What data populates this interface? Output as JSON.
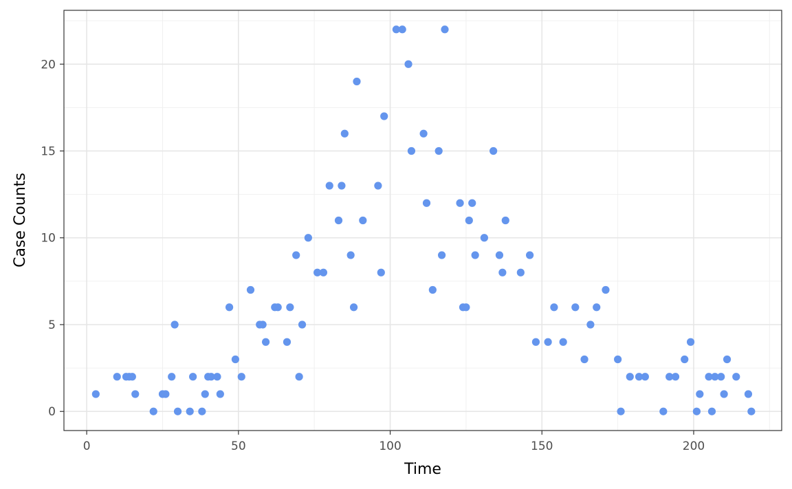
{
  "chart_data": {
    "type": "scatter",
    "xlabel": "Time",
    "ylabel": "Case Counts",
    "xlim": [
      -7.5,
      229
    ],
    "ylim": [
      -1.1,
      23.1
    ],
    "xticks": [
      0,
      50,
      100,
      150,
      200
    ],
    "yticks": [
      0,
      5,
      10,
      15,
      20
    ],
    "grid": true,
    "point_color": "#6495ED",
    "points": [
      [
        3,
        1
      ],
      [
        10,
        2
      ],
      [
        13,
        2
      ],
      [
        14,
        2
      ],
      [
        15,
        2
      ],
      [
        16,
        1
      ],
      [
        22,
        0
      ],
      [
        25,
        1
      ],
      [
        26,
        1
      ],
      [
        28,
        2
      ],
      [
        29,
        5
      ],
      [
        30,
        0
      ],
      [
        34,
        0
      ],
      [
        35,
        2
      ],
      [
        38,
        0
      ],
      [
        39,
        1
      ],
      [
        40,
        2
      ],
      [
        41,
        2
      ],
      [
        43,
        2
      ],
      [
        44,
        1
      ],
      [
        47,
        6
      ],
      [
        49,
        3
      ],
      [
        51,
        2
      ],
      [
        54,
        7
      ],
      [
        57,
        5
      ],
      [
        58,
        5
      ],
      [
        59,
        4
      ],
      [
        62,
        6
      ],
      [
        63,
        6
      ],
      [
        66,
        4
      ],
      [
        67,
        6
      ],
      [
        69,
        9
      ],
      [
        70,
        2
      ],
      [
        71,
        5
      ],
      [
        73,
        10
      ],
      [
        76,
        8
      ],
      [
        78,
        8
      ],
      [
        80,
        13
      ],
      [
        83,
        11
      ],
      [
        84,
        13
      ],
      [
        85,
        16
      ],
      [
        87,
        9
      ],
      [
        88,
        6
      ],
      [
        89,
        19
      ],
      [
        91,
        11
      ],
      [
        96,
        13
      ],
      [
        97,
        8
      ],
      [
        98,
        17
      ],
      [
        102,
        22
      ],
      [
        104,
        22
      ],
      [
        106,
        20
      ],
      [
        107,
        15
      ],
      [
        111,
        16
      ],
      [
        112,
        12
      ],
      [
        114,
        7
      ],
      [
        116,
        15
      ],
      [
        117,
        9
      ],
      [
        118,
        22
      ],
      [
        123,
        12
      ],
      [
        124,
        6
      ],
      [
        125,
        6
      ],
      [
        126,
        11
      ],
      [
        127,
        12
      ],
      [
        128,
        9
      ],
      [
        131,
        10
      ],
      [
        134,
        15
      ],
      [
        136,
        9
      ],
      [
        137,
        8
      ],
      [
        138,
        11
      ],
      [
        143,
        8
      ],
      [
        146,
        9
      ],
      [
        148,
        4
      ],
      [
        152,
        4
      ],
      [
        154,
        6
      ],
      [
        157,
        4
      ],
      [
        161,
        6
      ],
      [
        164,
        3
      ],
      [
        166,
        5
      ],
      [
        168,
        6
      ],
      [
        171,
        7
      ],
      [
        175,
        3
      ],
      [
        176,
        0
      ],
      [
        179,
        2
      ],
      [
        182,
        2
      ],
      [
        184,
        2
      ],
      [
        190,
        0
      ],
      [
        192,
        2
      ],
      [
        194,
        2
      ],
      [
        197,
        3
      ],
      [
        199,
        4
      ],
      [
        201,
        0
      ],
      [
        202,
        1
      ],
      [
        205,
        2
      ],
      [
        206,
        0
      ],
      [
        207,
        2
      ],
      [
        209,
        2
      ],
      [
        210,
        1
      ],
      [
        211,
        3
      ],
      [
        214,
        2
      ],
      [
        218,
        1
      ],
      [
        219,
        0
      ]
    ]
  }
}
